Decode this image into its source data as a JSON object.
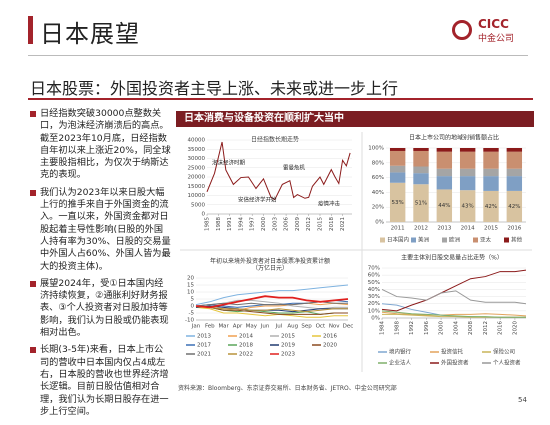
{
  "header": {
    "title": "日本展望",
    "logo_en": "CICC",
    "logo_cn": "中金公司"
  },
  "subtitle": "日本股票：外国投资者主导上涨、未来或进一步上行",
  "bullets": [
    "日经指数突破30000点整数关口，为泡沫经济崩溃后的高点。截至2023年10月底，日经指数自年初以来上涨近20%，同全球主要股指相比，为仅次于纳斯达克的表现。",
    "我们认为2023年以来日股大幅上行的推手来自于外国资金的流入。一直以来，外国资金都对日股起着主导性影响(日股的外国人持有率为30%、日股的交易量中外国人占60%、外国人皆为最大的投资主体)。",
    "展望2024年，受①日本国内经济持续恢复，②通胀利好财务报表、③个人投资者对日股加持等影响，我们认为日股或仍能表现相对出色。",
    "长期(3-5年)来看，日本上市公司的营收中日本国内仅占4成左右，日本股的营收也世界经济增长逻辑。目前日股估值相对合理，我们认为长期日股存在进一步上行空间。"
  ],
  "panel_title": "日本消费与设备投资在顺利扩大当中",
  "chart_data": [
    {
      "type": "line",
      "title": "日经指数长期走势",
      "x": [
        1985,
        1987,
        1989,
        1990,
        1992,
        1994,
        1996,
        1998,
        2000,
        2002,
        2003,
        2005,
        2007,
        2008,
        2009,
        2011,
        2012,
        2013,
        2015,
        2016,
        2018,
        2019,
        2020,
        2021,
        2022,
        2023
      ],
      "values": [
        12000,
        22000,
        38900,
        23800,
        16000,
        19700,
        20000,
        13800,
        19000,
        9000,
        7800,
        16000,
        18000,
        8900,
        10500,
        8500,
        9000,
        15000,
        20000,
        16000,
        24000,
        20000,
        16500,
        29000,
        26000,
        33000
      ],
      "color": "#8b1a1a",
      "xlim": [
        1985,
        2023.5
      ],
      "xticks": [
        1985,
        1988,
        1991,
        1994,
        1997,
        2000,
        2003,
        2006,
        2009,
        2012,
        2015,
        2018,
        2021
      ],
      "ylim": [
        0,
        40000
      ],
      "yticks": [
        0,
        5000,
        10000,
        15000,
        20000,
        25000,
        30000,
        35000,
        40000
      ],
      "annotations": [
        "泡沫经济时期",
        "雷曼危机",
        "安倍经济学开始",
        "疫情冲击"
      ]
    },
    {
      "type": "bar",
      "stacked": true,
      "title": "日本上市公司的地域别销售额占比",
      "categories": [
        "2011",
        "2012",
        "2013",
        "2014",
        "2015",
        "2016"
      ],
      "series": [
        {
          "name": "日本国内",
          "color": "#d8c3a0",
          "values": [
            53,
            51,
            44,
            43,
            42,
            42
          ],
          "value_labels": [
            "53%",
            "51%",
            "44%",
            "43%",
            "42%",
            "42%"
          ]
        },
        {
          "name": "美洲",
          "color": "#7f9fc4",
          "values": [
            14,
            15,
            18,
            19,
            20,
            20
          ]
        },
        {
          "name": "欧洲",
          "color": "#a5a5a5",
          "values": [
            9,
            9,
            10,
            10,
            10,
            10
          ]
        },
        {
          "name": "亚太",
          "color": "#c98f70",
          "values": [
            20,
            21,
            23,
            23,
            23,
            23
          ]
        },
        {
          "name": "其他",
          "color": "#8b1a1a",
          "values": [
            4,
            4,
            5,
            5,
            5,
            5
          ]
        }
      ],
      "ylim": [
        0,
        100
      ],
      "yticks": [
        {
          "value": 0,
          "label": "0%"
        },
        {
          "value": 20,
          "label": "20%"
        },
        {
          "value": 40,
          "label": "40%"
        },
        {
          "value": 60,
          "label": "60%"
        },
        {
          "value": 80,
          "label": "80%"
        },
        {
          "value": 100,
          "label": "100%"
        }
      ]
    },
    {
      "type": "line",
      "title": "年初以来境外投资者对日本股票净投资累计额（万亿日元）",
      "categories": [
        "Jan",
        "Feb",
        "Mar",
        "Apr",
        "May",
        "Jun",
        "Jul",
        "Aug",
        "Sep",
        "Oct",
        "Nov",
        "Dec"
      ],
      "series": [
        {
          "name": "2013",
          "color": "#7fb3e0",
          "values": [
            1,
            3,
            6,
            8,
            9,
            10,
            11,
            11,
            12,
            13,
            14,
            15
          ]
        },
        {
          "name": "2014",
          "color": "#f0a050",
          "values": [
            -1,
            -1,
            -2,
            -3,
            -1,
            0,
            0,
            1,
            2,
            1,
            2,
            1
          ]
        },
        {
          "name": "2015",
          "color": "#b0b0b0",
          "values": [
            0,
            1,
            2,
            4,
            4,
            3,
            2,
            0,
            -1,
            -2,
            -1,
            -1
          ]
        },
        {
          "name": "2016",
          "color": "#e6c63c",
          "values": [
            -1,
            -2,
            -5,
            -5,
            -6,
            -7,
            -6,
            -7,
            -8,
            -8,
            -7,
            -7
          ]
        },
        {
          "name": "2017",
          "color": "#3a6fb5",
          "values": [
            0,
            1,
            0,
            -1,
            0,
            1,
            1,
            2,
            2,
            3,
            4,
            3
          ]
        },
        {
          "name": "2018",
          "color": "#5aa55a",
          "values": [
            0,
            -1,
            -3,
            -4,
            -3,
            -4,
            -5,
            -5,
            -4,
            -6,
            -5,
            -5
          ]
        },
        {
          "name": "2019",
          "color": "#203a70",
          "values": [
            -1,
            0,
            -1,
            -2,
            -3,
            -3,
            -3,
            -4,
            -3,
            -2,
            -2,
            -2
          ]
        },
        {
          "name": "2020",
          "color": "#8a4a20",
          "values": [
            0,
            -1,
            -3,
            -3,
            -4,
            -5,
            -6,
            -6,
            -6,
            -6,
            -5,
            -5
          ]
        },
        {
          "name": "2021",
          "color": "#707070",
          "values": [
            0,
            1,
            2,
            1,
            2,
            1,
            1,
            1,
            2,
            3,
            2,
            2
          ]
        },
        {
          "name": "2022",
          "color": "#b8923a",
          "values": [
            0,
            -1,
            -2,
            -2,
            -3,
            -3,
            -2,
            -3,
            -4,
            -3,
            -2,
            -2
          ]
        },
        {
          "name": "2023",
          "color": "#e0201e",
          "values": [
            0,
            -1,
            1,
            3,
            5,
            7,
            6,
            6,
            4,
            3,
            4,
            5
          ]
        }
      ],
      "ylim": [
        -10,
        20
      ],
      "yticks": [
        -10,
        -5,
        0,
        5,
        10,
        15,
        20
      ]
    },
    {
      "type": "line",
      "title": "主要主体別日股交易量占比走势（%）",
      "x": [
        1984,
        1988,
        1992,
        1996,
        2000,
        2004,
        2008,
        2012,
        2016,
        2020,
        2023
      ],
      "series": [
        {
          "name": "境内银行",
          "color": "#7fa7d0",
          "values": [
            20,
            18,
            12,
            8,
            4,
            2,
            2,
            1,
            1,
            1,
            1
          ]
        },
        {
          "name": "投资信托",
          "color": "#e3a35c",
          "values": [
            8,
            6,
            5,
            4,
            4,
            5,
            5,
            6,
            5,
            4,
            3
          ]
        },
        {
          "name": "保险公司",
          "color": "#c9b458",
          "values": [
            5,
            5,
            4,
            3,
            2,
            2,
            1,
            1,
            1,
            1,
            1
          ]
        },
        {
          "name": "企业法人",
          "color": "#7fb06a",
          "values": [
            10,
            8,
            6,
            5,
            4,
            3,
            2,
            2,
            1,
            1,
            1
          ]
        },
        {
          "name": "外国投资者",
          "color": "#8b1a1a",
          "values": [
            12,
            10,
            18,
            25,
            35,
            45,
            55,
            58,
            65,
            65,
            67
          ]
        },
        {
          "name": "个人投资者",
          "color": "#999999",
          "values": [
            40,
            30,
            28,
            25,
            35,
            38,
            25,
            22,
            22,
            22,
            20
          ]
        }
      ],
      "xlim": [
        1984,
        2023
      ],
      "xticks": [
        1984,
        1988,
        1992,
        1996,
        2000,
        2004,
        2008,
        2012,
        2016,
        2020
      ],
      "ylim": [
        0,
        70
      ],
      "yticks": [
        {
          "value": 0,
          "label": "0%"
        },
        {
          "value": 10,
          "label": "10%"
        },
        {
          "value": 20,
          "label": "20%"
        },
        {
          "value": 30,
          "label": "30%"
        },
        {
          "value": 40,
          "label": "40%"
        },
        {
          "value": 50,
          "label": "50%"
        },
        {
          "value": 60,
          "label": "60%"
        },
        {
          "value": 70,
          "label": "70%"
        }
      ]
    }
  ],
  "source": "资料来源：Bloomberg、东京证券交易所、日本财务省、JETRO、中金公司研究部",
  "page": "54"
}
